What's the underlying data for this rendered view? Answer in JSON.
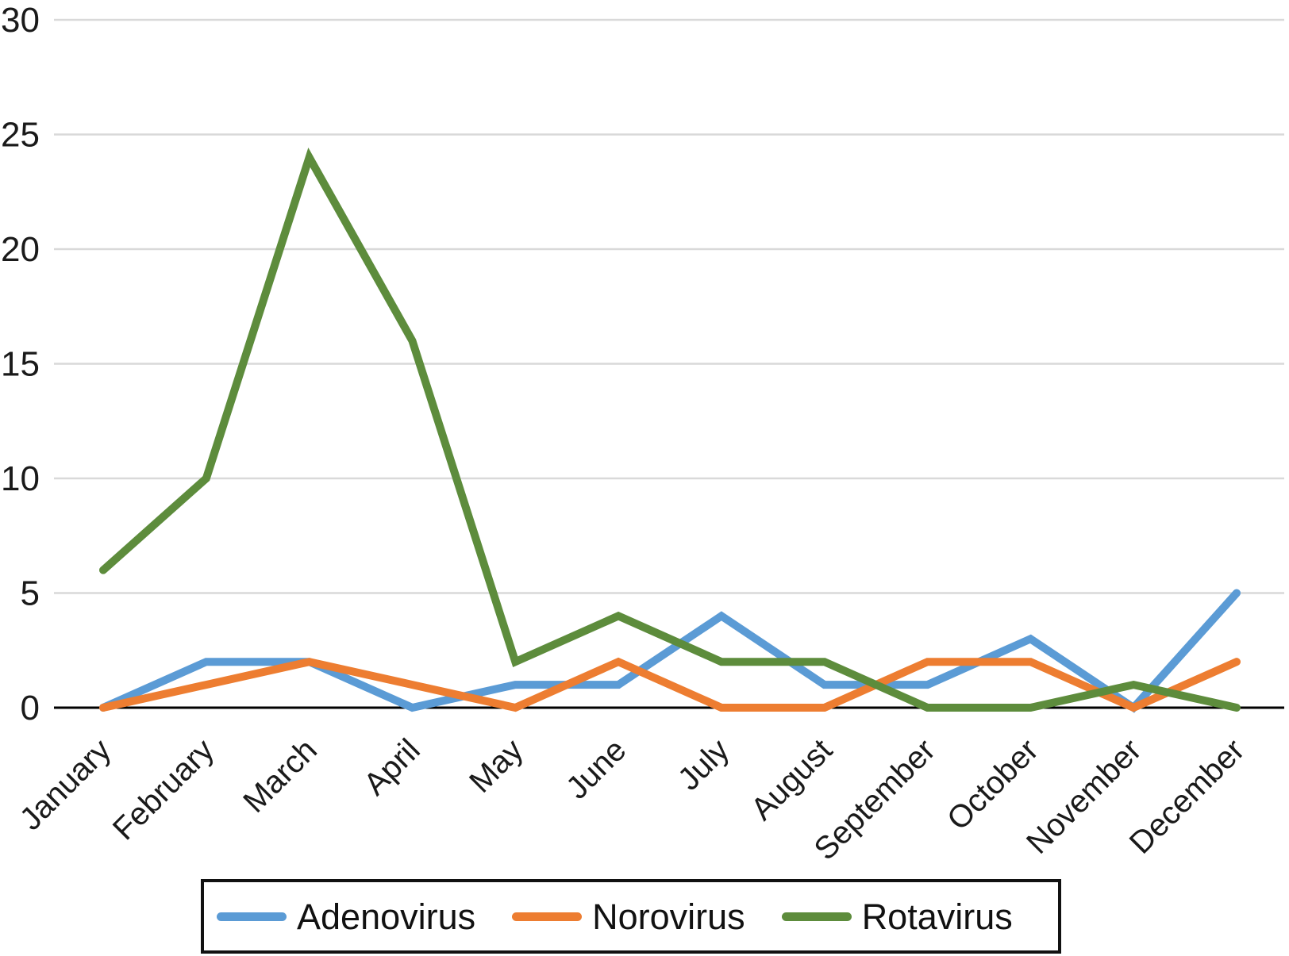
{
  "chart_data": {
    "type": "line",
    "title": "",
    "xlabel": "",
    "ylabel": "",
    "categories": [
      "January",
      "February",
      "March",
      "April",
      "May",
      "June",
      "July",
      "August",
      "September",
      "October",
      "November",
      "December"
    ],
    "series": [
      {
        "name": "Adenovirus",
        "color": "#5B9BD5",
        "values": [
          0,
          2,
          2,
          0,
          1,
          1,
          4,
          1,
          1,
          3,
          0,
          5
        ]
      },
      {
        "name": "Norovirus",
        "color": "#ED7D31",
        "values": [
          0,
          1,
          2,
          1,
          0,
          2,
          0,
          0,
          2,
          2,
          0,
          2
        ]
      },
      {
        "name": "Rotavirus",
        "color": "#5D8C3C",
        "values": [
          6,
          10,
          24,
          16,
          2,
          4,
          2,
          2,
          0,
          0,
          1,
          0
        ]
      }
    ],
    "ylim": [
      0,
      30
    ],
    "yticks": [
      0,
      5,
      10,
      15,
      20,
      25,
      30
    ],
    "grid": true,
    "gridline_color": "#d9d9d9",
    "axis_color": "#000000",
    "tick_label_color": "#1a1a1a",
    "legend_position": "bottom"
  }
}
